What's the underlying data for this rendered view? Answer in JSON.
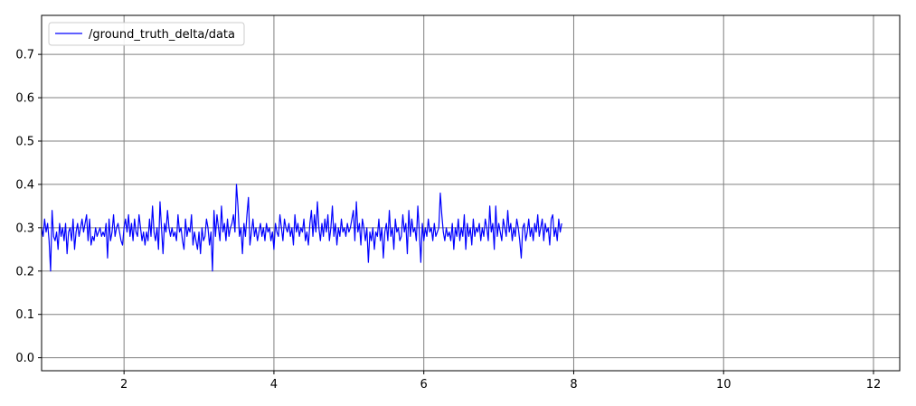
{
  "chart_data": {
    "type": "line",
    "title": "",
    "xlabel": "",
    "ylabel": "",
    "xlim": [
      0.9,
      12.35
    ],
    "ylim": [
      -0.03,
      0.79
    ],
    "x_ticks": [
      2,
      4,
      6,
      8,
      10,
      12
    ],
    "y_ticks": [
      0.0,
      0.1,
      0.2,
      0.3,
      0.4,
      0.5,
      0.6,
      0.7
    ],
    "grid": true,
    "legend_position": "top-left",
    "colors": {
      "series": "#0000ff",
      "grid": "#808080",
      "axes": "#000000"
    },
    "series": [
      {
        "name": "/ground_truth_delta/data",
        "x_start": 0.9,
        "x_step": 0.02,
        "values": [
          0.3,
          0.28,
          0.32,
          0.29,
          0.31,
          0.27,
          0.2,
          0.34,
          0.28,
          0.27,
          0.29,
          0.25,
          0.31,
          0.28,
          0.3,
          0.27,
          0.31,
          0.24,
          0.29,
          0.3,
          0.27,
          0.32,
          0.25,
          0.29,
          0.31,
          0.28,
          0.3,
          0.32,
          0.29,
          0.31,
          0.33,
          0.27,
          0.32,
          0.26,
          0.28,
          0.27,
          0.3,
          0.28,
          0.29,
          0.3,
          0.28,
          0.29,
          0.28,
          0.31,
          0.23,
          0.32,
          0.27,
          0.29,
          0.33,
          0.28,
          0.3,
          0.31,
          0.29,
          0.27,
          0.26,
          0.3,
          0.32,
          0.29,
          0.33,
          0.28,
          0.31,
          0.27,
          0.32,
          0.29,
          0.28,
          0.33,
          0.3,
          0.27,
          0.29,
          0.26,
          0.29,
          0.27,
          0.32,
          0.28,
          0.35,
          0.29,
          0.27,
          0.3,
          0.25,
          0.36,
          0.3,
          0.24,
          0.31,
          0.29,
          0.34,
          0.3,
          0.28,
          0.3,
          0.28,
          0.29,
          0.27,
          0.33,
          0.29,
          0.3,
          0.27,
          0.25,
          0.32,
          0.28,
          0.3,
          0.29,
          0.33,
          0.26,
          0.29,
          0.27,
          0.25,
          0.29,
          0.24,
          0.3,
          0.27,
          0.28,
          0.32,
          0.3,
          0.26,
          0.29,
          0.2,
          0.34,
          0.28,
          0.33,
          0.3,
          0.27,
          0.35,
          0.29,
          0.31,
          0.27,
          0.32,
          0.28,
          0.3,
          0.31,
          0.33,
          0.29,
          0.4,
          0.35,
          0.28,
          0.3,
          0.24,
          0.31,
          0.28,
          0.33,
          0.37,
          0.26,
          0.29,
          0.32,
          0.28,
          0.3,
          0.27,
          0.29,
          0.31,
          0.28,
          0.3,
          0.27,
          0.31,
          0.29,
          0.3,
          0.27,
          0.29,
          0.25,
          0.31,
          0.29,
          0.28,
          0.33,
          0.3,
          0.27,
          0.32,
          0.3,
          0.29,
          0.31,
          0.28,
          0.3,
          0.26,
          0.33,
          0.29,
          0.31,
          0.28,
          0.3,
          0.29,
          0.32,
          0.27,
          0.29,
          0.26,
          0.31,
          0.34,
          0.28,
          0.33,
          0.29,
          0.36,
          0.3,
          0.27,
          0.31,
          0.28,
          0.32,
          0.29,
          0.33,
          0.27,
          0.3,
          0.35,
          0.28,
          0.31,
          0.26,
          0.3,
          0.28,
          0.32,
          0.29,
          0.3,
          0.28,
          0.31,
          0.29,
          0.3,
          0.32,
          0.34,
          0.27,
          0.36,
          0.29,
          0.31,
          0.26,
          0.32,
          0.3,
          0.27,
          0.3,
          0.22,
          0.29,
          0.27,
          0.3,
          0.25,
          0.29,
          0.28,
          0.32,
          0.27,
          0.3,
          0.23,
          0.29,
          0.31,
          0.27,
          0.34,
          0.28,
          0.3,
          0.25,
          0.32,
          0.29,
          0.3,
          0.27,
          0.28,
          0.33,
          0.29,
          0.31,
          0.24,
          0.34,
          0.28,
          0.32,
          0.29,
          0.3,
          0.27,
          0.35,
          0.29,
          0.22,
          0.31,
          0.27,
          0.3,
          0.28,
          0.32,
          0.29,
          0.3,
          0.27,
          0.31,
          0.28,
          0.29,
          0.3,
          0.38,
          0.33,
          0.29,
          0.27,
          0.3,
          0.28,
          0.29,
          0.27,
          0.31,
          0.25,
          0.3,
          0.28,
          0.32,
          0.27,
          0.3,
          0.28,
          0.33,
          0.25,
          0.31,
          0.28,
          0.3,
          0.26,
          0.32,
          0.28,
          0.3,
          0.29,
          0.31,
          0.27,
          0.3,
          0.28,
          0.32,
          0.3,
          0.27,
          0.35,
          0.29,
          0.31,
          0.25,
          0.35,
          0.28,
          0.31,
          0.29,
          0.27,
          0.32,
          0.3,
          0.28,
          0.34,
          0.29,
          0.31,
          0.27,
          0.3,
          0.28,
          0.32,
          0.3,
          0.27,
          0.23,
          0.3,
          0.31,
          0.27,
          0.29,
          0.32,
          0.28,
          0.3,
          0.27,
          0.31,
          0.29,
          0.33,
          0.28,
          0.3,
          0.32,
          0.27,
          0.31,
          0.29,
          0.3,
          0.26,
          0.32,
          0.33,
          0.28,
          0.3,
          0.27,
          0.32,
          0.29,
          0.31
        ]
      }
    ]
  }
}
